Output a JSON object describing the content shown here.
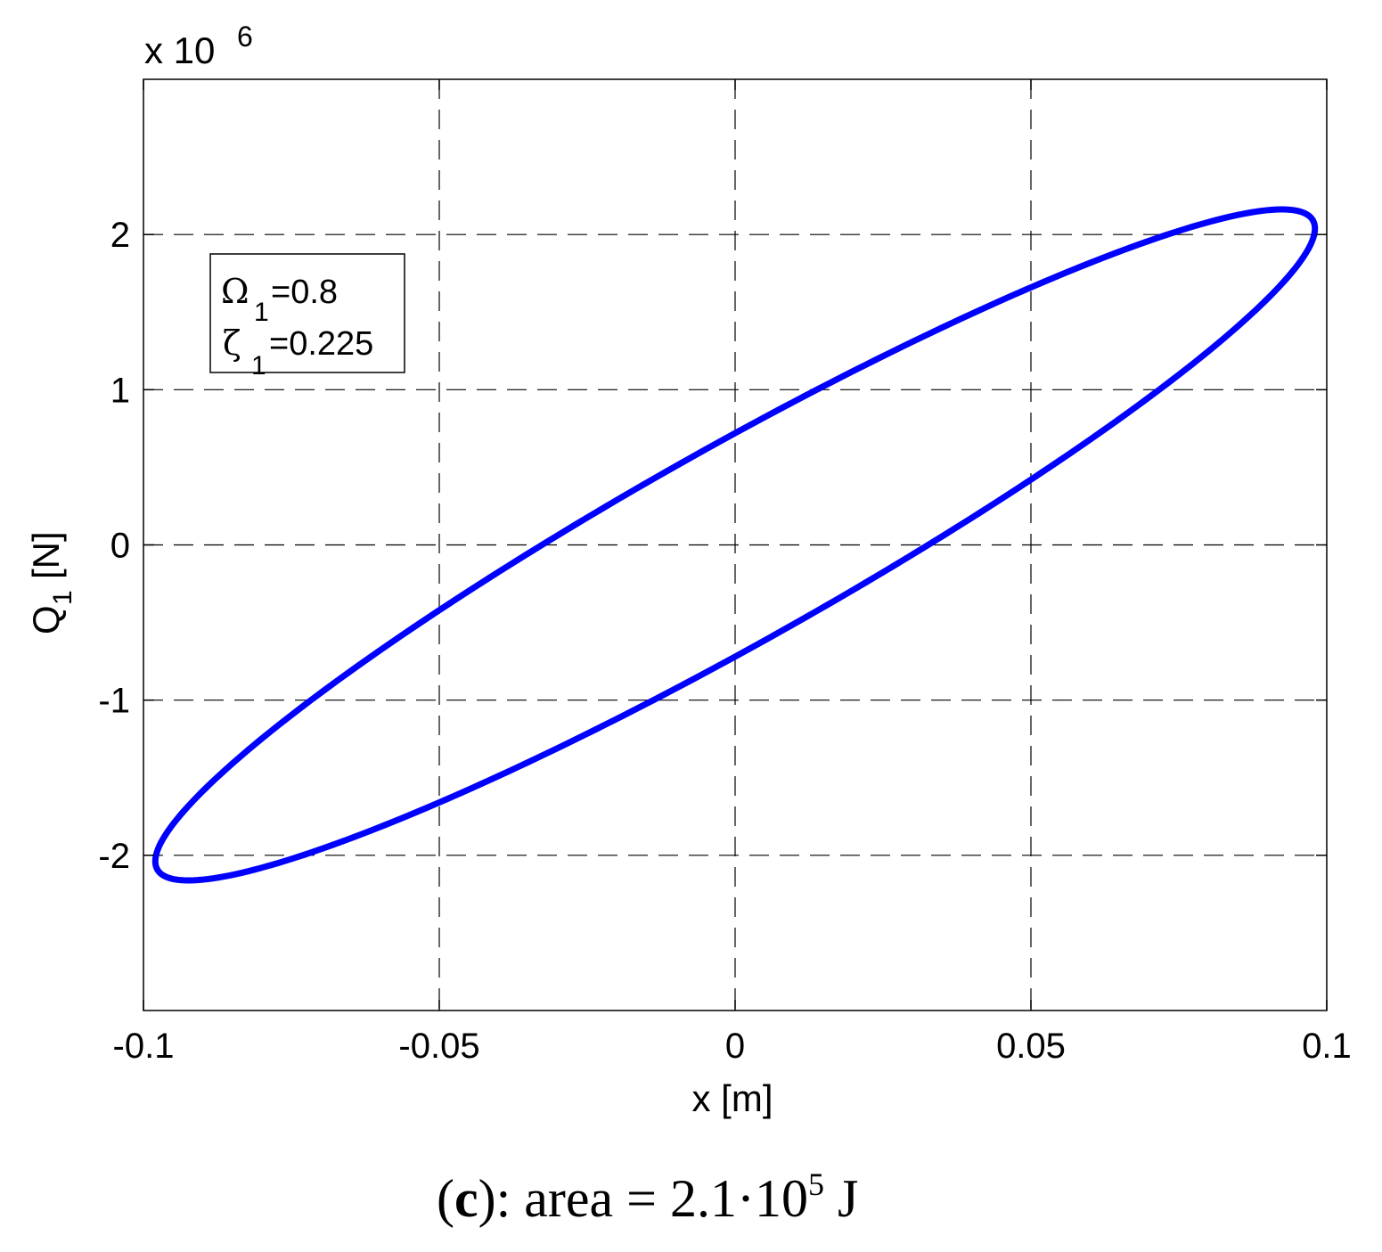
{
  "chart_data": {
    "type": "line",
    "title": "",
    "xlabel": "x [m]",
    "ylabel_main": "Q",
    "ylabel_sub": "1",
    "ylabel_unit": "[N]",
    "y_multiplier_base": "x 10",
    "y_multiplier_exp": "6",
    "xlim": [
      -0.1,
      0.1
    ],
    "ylim": [
      -3,
      3
    ],
    "xticks": [
      -0.1,
      -0.05,
      0,
      0.05,
      0.1
    ],
    "xtick_labels": [
      "-0.1",
      "-0.05",
      "0",
      "0.05",
      "0.1"
    ],
    "yticks": [
      -2,
      -1,
      0,
      1,
      2
    ],
    "ytick_labels": [
      "-2",
      "-1",
      "0",
      "1",
      "2"
    ],
    "grid": true,
    "series": [
      {
        "color": "#0000ff",
        "shape": "ellipse",
        "x_amplitude": 0.098,
        "y_at_x_zero": 0.72,
        "slope": 20.8,
        "points": [
          [
            -0.098,
            -2.04
          ],
          [
            -0.097,
            -1.85
          ],
          [
            -0.094,
            -1.72
          ],
          [
            -0.08,
            -1.18
          ],
          [
            -0.06,
            -0.53
          ],
          [
            -0.05,
            -0.38
          ],
          [
            -0.04,
            -0.14
          ],
          [
            -0.03,
            0.09
          ],
          [
            -0.02,
            0.31
          ],
          [
            -0.01,
            0.52
          ],
          [
            0,
            0.72
          ],
          [
            0.01,
            0.91
          ],
          [
            0.02,
            1.09
          ],
          [
            0.03,
            1.26
          ],
          [
            0.04,
            1.41
          ],
          [
            0.05,
            1.56
          ],
          [
            0.06,
            1.71
          ],
          [
            0.07,
            1.83
          ],
          [
            0.08,
            1.95
          ],
          [
            0.09,
            2.05
          ],
          [
            0.094,
            2.04
          ],
          [
            0.098,
            1.95
          ],
          [
            0.097,
            1.85
          ],
          [
            0.094,
            1.72
          ],
          [
            0.08,
            1.18
          ],
          [
            0.06,
            0.53
          ],
          [
            0.05,
            0.38
          ],
          [
            0.04,
            0.14
          ],
          [
            0.03,
            -0.09
          ],
          [
            0.02,
            -0.31
          ],
          [
            0.01,
            -0.52
          ],
          [
            0,
            -0.72
          ],
          [
            -0.01,
            -0.91
          ],
          [
            -0.02,
            -1.09
          ],
          [
            -0.03,
            -1.26
          ],
          [
            -0.04,
            -1.41
          ],
          [
            -0.05,
            -1.56
          ],
          [
            -0.06,
            -1.71
          ],
          [
            -0.07,
            -1.83
          ],
          [
            -0.08,
            -1.95
          ],
          [
            -0.09,
            -2.05
          ],
          [
            -0.094,
            -2.04
          ]
        ]
      }
    ],
    "annotation": {
      "line1_main": "Ω",
      "line1_sub": "1",
      "line1_value": "=0.8",
      "line2_main": "ζ",
      "line2_sub": "1",
      "line2_value": "=0.225"
    }
  },
  "caption": {
    "open": "(",
    "letter": "c",
    "close": ")",
    "text": ": area = 2.1·10",
    "exp": "5",
    "unit": " J"
  }
}
